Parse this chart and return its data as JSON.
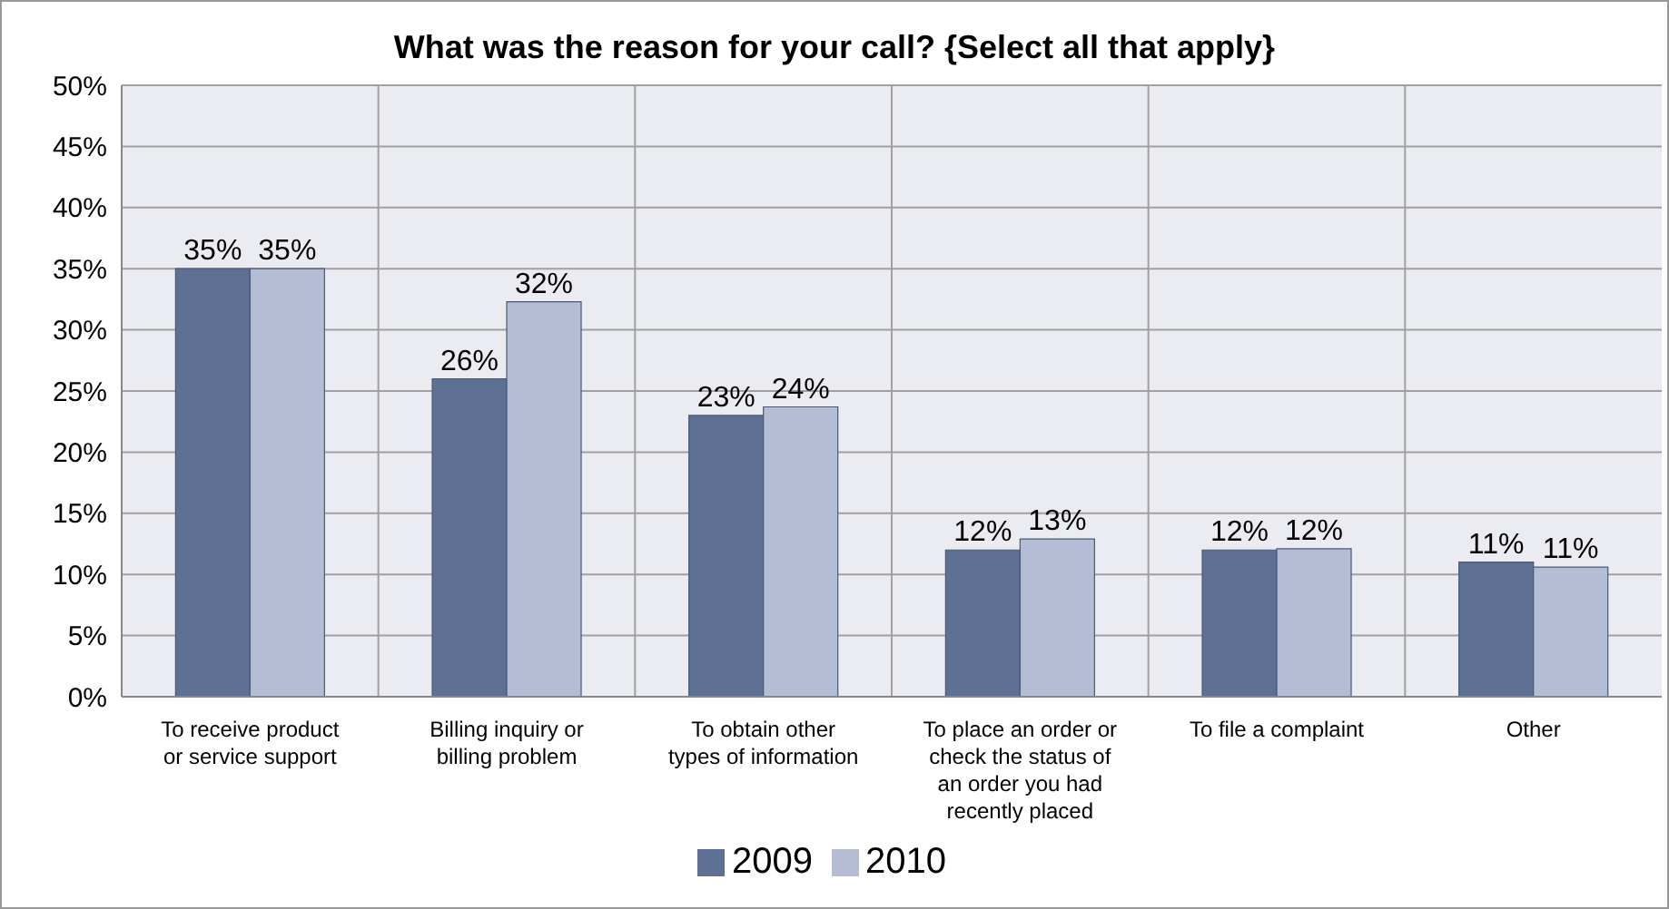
{
  "chart_data": {
    "type": "bar",
    "title": "What was the reason for your call? {Select all that apply}",
    "categories": [
      "To receive product or service support",
      "Billing inquiry or billing problem",
      "To obtain other types of information",
      "To place an order or check the status of an order you had recently placed",
      "To file a complaint",
      "Other"
    ],
    "series": [
      {
        "name": "2009",
        "color": "#5f7095",
        "values": [
          35,
          26,
          23,
          12,
          12,
          11
        ],
        "value_labels": [
          "35%",
          "26%",
          "23%",
          "12%",
          "12%",
          "11%"
        ]
      },
      {
        "name": "2010",
        "color": "#b4bdd4",
        "values": [
          35,
          32.3,
          23.7,
          12.9,
          12.1,
          10.6
        ],
        "value_labels": [
          "35%",
          "32%",
          "24%",
          "13%",
          "12%",
          "11%"
        ]
      }
    ],
    "ylim": [
      0,
      50
    ],
    "yticks": [
      {
        "value": 0,
        "label": "0%"
      },
      {
        "value": 5,
        "label": "5%"
      },
      {
        "value": 10,
        "label": "10%"
      },
      {
        "value": 15,
        "label": "15%"
      },
      {
        "value": 20,
        "label": "20%"
      },
      {
        "value": 25,
        "label": "25%"
      },
      {
        "value": 30,
        "label": "30%"
      },
      {
        "value": 35,
        "label": "35%"
      },
      {
        "value": 40,
        "label": "40%"
      },
      {
        "value": 45,
        "label": "45%"
      },
      {
        "value": 50,
        "label": "50%"
      }
    ],
    "grid": true,
    "legend": "bottom"
  }
}
